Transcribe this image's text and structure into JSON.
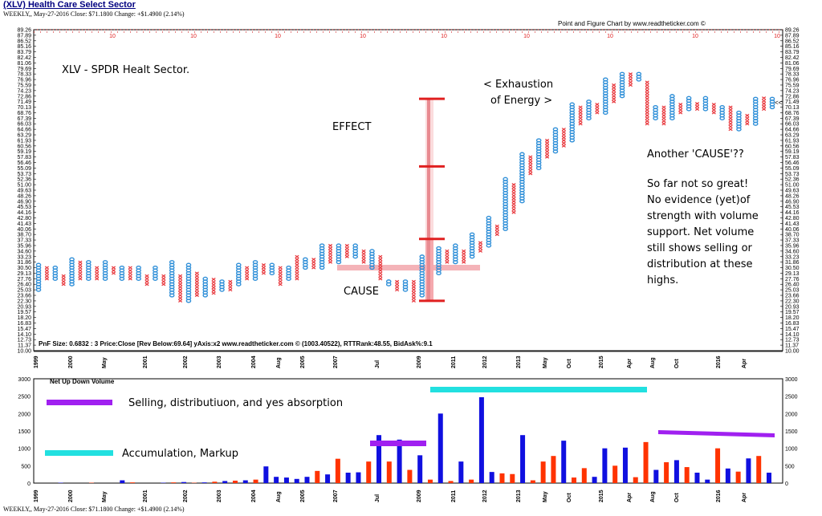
{
  "header": {
    "title": "(XLV) Health Care Select Sector",
    "subtitle": "WEEKLY,, May-27-2016 Close: $71.1800 Change: +$1.4900 (2.14%)",
    "credit": "Point and Figure Chart by www.readtheticker.com ©"
  },
  "footer": {
    "text": "WEEKLY,, May-27-2016 Close: $71.1800 Change: +$1.4900 (2.14%)"
  },
  "colors": {
    "x_column": "#e8383d",
    "o_column": "#2f8fd8",
    "up_volume": "#1010e0",
    "down_volume": "#ff3300",
    "distribution_bar": "#a020f0",
    "accumulation_bar": "#22e0e0",
    "cause_band": "#f4b3b8",
    "effect_bar": "#e02020"
  },
  "chart_data": [
    {
      "type": "point-and-figure",
      "info_line": "PnF Size: 0.6832 : 3    Price:Close [Rev Below:69.64] yAxis:x2    www.readtheticker.com © (1003.40522), RTTRank:48.55, BidAsk%:9.1",
      "y_ticks": [
        "89.26",
        "87.89",
        "86.52",
        "85.16",
        "83.79",
        "82.42",
        "81.06",
        "79.69",
        "78.33",
        "76.96",
        "75.59",
        "74.23",
        "72.86",
        "71.49",
        "70.13",
        "68.76",
        "67.39",
        "66.03",
        "64.66",
        "63.29",
        "61.93",
        "60.56",
        "59.19",
        "57.83",
        "56.46",
        "55.09",
        "53.73",
        "52.36",
        "51.00",
        "49.63",
        "48.26",
        "46.90",
        "45.53",
        "44.16",
        "42.80",
        "41.43",
        "40.06",
        "38.70",
        "37.33",
        "35.96",
        "34.60",
        "33.23",
        "31.86",
        "30.50",
        "29.13",
        "27.76",
        "26.40",
        "25.03",
        "23.66",
        "22.30",
        "20.93",
        "19.57",
        "18.20",
        "16.83",
        "15.47",
        "14.10",
        "12.73",
        "11.37",
        "10.00"
      ],
      "ylim": [
        10.0,
        89.26
      ],
      "last_price_marker": "<<",
      "top_markers": [
        "10",
        "10",
        "10",
        "10",
        "10",
        "10",
        "10",
        "10",
        "10"
      ],
      "x_labels": [
        "1999",
        "2000",
        "May",
        "2001",
        "2002",
        "2003",
        "2004",
        "Aug",
        "2005",
        "2007",
        "Jul",
        "2009",
        "2011",
        "2012",
        "2013",
        "May",
        "Oct",
        "2015",
        "Apr",
        "Aug",
        "Oct",
        "2016",
        "Apr"
      ],
      "columns": [
        {
          "t": "O",
          "lo": 25.03,
          "hi": 31.86
        },
        {
          "t": "X",
          "lo": 27.76,
          "hi": 30.5
        },
        {
          "t": "O",
          "lo": 27.76,
          "hi": 30.5
        },
        {
          "t": "X",
          "lo": 26.4,
          "hi": 29.13
        },
        {
          "t": "O",
          "lo": 26.4,
          "hi": 33.23
        },
        {
          "t": "X",
          "lo": 27.76,
          "hi": 31.86
        },
        {
          "t": "O",
          "lo": 27.76,
          "hi": 31.86
        },
        {
          "t": "X",
          "lo": 27.76,
          "hi": 30.5
        },
        {
          "t": "O",
          "lo": 27.76,
          "hi": 31.86
        },
        {
          "t": "X",
          "lo": 29.13,
          "hi": 30.5
        },
        {
          "t": "O",
          "lo": 27.76,
          "hi": 30.5
        },
        {
          "t": "X",
          "lo": 27.76,
          "hi": 30.5
        },
        {
          "t": "O",
          "lo": 27.76,
          "hi": 30.5
        },
        {
          "t": "X",
          "lo": 26.4,
          "hi": 29.13
        },
        {
          "t": "O",
          "lo": 27.76,
          "hi": 30.5
        },
        {
          "t": "X",
          "lo": 26.4,
          "hi": 29.13
        },
        {
          "t": "O",
          "lo": 23.66,
          "hi": 31.86
        },
        {
          "t": "X",
          "lo": 22.3,
          "hi": 29.13
        },
        {
          "t": "O",
          "lo": 22.3,
          "hi": 31.86
        },
        {
          "t": "X",
          "lo": 23.66,
          "hi": 29.13
        },
        {
          "t": "O",
          "lo": 23.66,
          "hi": 27.76
        },
        {
          "t": "X",
          "lo": 24.2,
          "hi": 27.76
        },
        {
          "t": "O",
          "lo": 25.03,
          "hi": 27.76
        },
        {
          "t": "X",
          "lo": 25.03,
          "hi": 27.76
        },
        {
          "t": "O",
          "lo": 26.4,
          "hi": 31.86
        },
        {
          "t": "X",
          "lo": 27.76,
          "hi": 30.5
        },
        {
          "t": "O",
          "lo": 27.76,
          "hi": 31.86
        },
        {
          "t": "X",
          "lo": 29.13,
          "hi": 31.86
        },
        {
          "t": "O",
          "lo": 29.13,
          "hi": 31.86
        },
        {
          "t": "X",
          "lo": 26.4,
          "hi": 30.5
        },
        {
          "t": "O",
          "lo": 27.76,
          "hi": 30.5
        },
        {
          "t": "X",
          "lo": 27.76,
          "hi": 33.23
        },
        {
          "t": "O",
          "lo": 30.5,
          "hi": 33.23
        },
        {
          "t": "X",
          "lo": 30.5,
          "hi": 33.23
        },
        {
          "t": "O",
          "lo": 30.5,
          "hi": 36.0
        },
        {
          "t": "X",
          "lo": 31.86,
          "hi": 36.0
        },
        {
          "t": "O",
          "lo": 31.86,
          "hi": 36.0
        },
        {
          "t": "X",
          "lo": 33.23,
          "hi": 36.0
        },
        {
          "t": "O",
          "lo": 33.23,
          "hi": 36.0
        },
        {
          "t": "X",
          "lo": 31.86,
          "hi": 34.6
        },
        {
          "t": "O",
          "lo": 30.5,
          "hi": 34.6
        },
        {
          "t": "X",
          "lo": 27.76,
          "hi": 33.23
        },
        {
          "t": "O",
          "lo": 26.4,
          "hi": 27.76
        },
        {
          "t": "X",
          "lo": 25.03,
          "hi": 27.76
        },
        {
          "t": "O",
          "lo": 25.03,
          "hi": 27.76
        },
        {
          "t": "X",
          "lo": 22.3,
          "hi": 27.76
        },
        {
          "t": "O",
          "lo": 23.66,
          "hi": 33.23
        },
        {
          "t": "X",
          "lo": 27.76,
          "hi": 31.86
        },
        {
          "t": "O",
          "lo": 29.13,
          "hi": 35.96
        },
        {
          "t": "X",
          "lo": 31.86,
          "hi": 34.6
        },
        {
          "t": "O",
          "lo": 31.86,
          "hi": 35.96
        },
        {
          "t": "X",
          "lo": 31.86,
          "hi": 34.6
        },
        {
          "t": "O",
          "lo": 33.23,
          "hi": 38.7
        },
        {
          "t": "X",
          "lo": 34.6,
          "hi": 37.33
        },
        {
          "t": "O",
          "lo": 35.96,
          "hi": 42.8
        },
        {
          "t": "X",
          "lo": 38.7,
          "hi": 41.43
        },
        {
          "t": "O",
          "lo": 40.06,
          "hi": 52.36
        },
        {
          "t": "X",
          "lo": 44.16,
          "hi": 51.0
        },
        {
          "t": "O",
          "lo": 46.9,
          "hi": 59.19
        },
        {
          "t": "X",
          "lo": 53.73,
          "hi": 57.83
        },
        {
          "t": "O",
          "lo": 55.09,
          "hi": 61.93
        },
        {
          "t": "X",
          "lo": 57.83,
          "hi": 61.93
        },
        {
          "t": "O",
          "lo": 59.19,
          "hi": 64.66
        },
        {
          "t": "X",
          "lo": 60.56,
          "hi": 64.66
        },
        {
          "t": "O",
          "lo": 61.93,
          "hi": 71.49
        },
        {
          "t": "X",
          "lo": 66.03,
          "hi": 70.13
        },
        {
          "t": "O",
          "lo": 67.39,
          "hi": 71.49
        },
        {
          "t": "X",
          "lo": 68.76,
          "hi": 71.49
        },
        {
          "t": "O",
          "lo": 68.76,
          "hi": 76.96
        },
        {
          "t": "X",
          "lo": 71.49,
          "hi": 75.59
        },
        {
          "t": "O",
          "lo": 72.86,
          "hi": 78.33
        },
        {
          "t": "X",
          "lo": 75.59,
          "hi": 78.33
        },
        {
          "t": "O",
          "lo": 76.96,
          "hi": 78.33
        },
        {
          "t": "X",
          "lo": 66.03,
          "hi": 76.96
        },
        {
          "t": "O",
          "lo": 67.39,
          "hi": 70.13
        },
        {
          "t": "X",
          "lo": 66.03,
          "hi": 70.13
        },
        {
          "t": "O",
          "lo": 67.39,
          "hi": 72.86
        },
        {
          "t": "X",
          "lo": 68.76,
          "hi": 71.49
        },
        {
          "t": "O",
          "lo": 69.64,
          "hi": 72.86
        },
        {
          "t": "X",
          "lo": 69.64,
          "hi": 71.49
        },
        {
          "t": "O",
          "lo": 69.64,
          "hi": 72.86
        },
        {
          "t": "X",
          "lo": 68.76,
          "hi": 71.49
        },
        {
          "t": "O",
          "lo": 67.39,
          "hi": 70.13
        },
        {
          "t": "X",
          "lo": 64.66,
          "hi": 70.13
        },
        {
          "t": "O",
          "lo": 64.66,
          "hi": 68.76
        },
        {
          "t": "X",
          "lo": 66.03,
          "hi": 68.76
        },
        {
          "t": "O",
          "lo": 66.03,
          "hi": 72.86
        },
        {
          "t": "X",
          "lo": 69.64,
          "hi": 72.86
        },
        {
          "t": "O",
          "lo": 70.13,
          "hi": 72.86
        }
      ]
    },
    {
      "type": "bar",
      "title": "Net Up Down Volume",
      "y_ticks": [
        "3000",
        "2500",
        "2000",
        "1500",
        "1000",
        "500",
        "0"
      ],
      "ylim": [
        0,
        3000
      ],
      "x_labels": [
        "1999",
        "2000",
        "May",
        "2001",
        "2002",
        "2003",
        "2004",
        "Aug",
        "2005",
        "2007",
        "Jul",
        "2009",
        "2011",
        "2012",
        "2013",
        "May",
        "Oct",
        "2015",
        "Apr",
        "Aug",
        "Oct",
        "2016",
        "Apr"
      ],
      "bars": [
        {
          "d": "u",
          "v": 0
        },
        {
          "d": "d",
          "v": 0
        },
        {
          "d": "u",
          "v": 10
        },
        {
          "d": "d",
          "v": 0
        },
        {
          "d": "u",
          "v": 0
        },
        {
          "d": "d",
          "v": 10
        },
        {
          "d": "u",
          "v": 0
        },
        {
          "d": "d",
          "v": 0
        },
        {
          "d": "u",
          "v": 80
        },
        {
          "d": "d",
          "v": 20
        },
        {
          "d": "u",
          "v": 0
        },
        {
          "d": "d",
          "v": 0
        },
        {
          "d": "u",
          "v": 10
        },
        {
          "d": "d",
          "v": 20
        },
        {
          "d": "u",
          "v": 30
        },
        {
          "d": "d",
          "v": 10
        },
        {
          "d": "u",
          "v": 20
        },
        {
          "d": "d",
          "v": 40
        },
        {
          "d": "u",
          "v": 60
        },
        {
          "d": "d",
          "v": 70
        },
        {
          "d": "u",
          "v": 80
        },
        {
          "d": "d",
          "v": 100
        },
        {
          "d": "u",
          "v": 480
        },
        {
          "d": "u",
          "v": 180
        },
        {
          "d": "u",
          "v": 160
        },
        {
          "d": "u",
          "v": 120
        },
        {
          "d": "u",
          "v": 180
        },
        {
          "d": "d",
          "v": 350
        },
        {
          "d": "u",
          "v": 250
        },
        {
          "d": "d",
          "v": 700
        },
        {
          "d": "u",
          "v": 300
        },
        {
          "d": "u",
          "v": 310
        },
        {
          "d": "d",
          "v": 620
        },
        {
          "d": "u",
          "v": 1380
        },
        {
          "d": "d",
          "v": 620
        },
        {
          "d": "u",
          "v": 1250
        },
        {
          "d": "d",
          "v": 380
        },
        {
          "d": "u",
          "v": 800
        },
        {
          "d": "d",
          "v": 100
        },
        {
          "d": "u",
          "v": 2000
        },
        {
          "d": "d",
          "v": 60
        },
        {
          "d": "u",
          "v": 620
        },
        {
          "d": "d",
          "v": 100
        },
        {
          "d": "u",
          "v": 2470
        },
        {
          "d": "u",
          "v": 320
        },
        {
          "d": "d",
          "v": 280
        },
        {
          "d": "d",
          "v": 260
        },
        {
          "d": "u",
          "v": 1380
        },
        {
          "d": "d",
          "v": 80
        },
        {
          "d": "d",
          "v": 620
        },
        {
          "d": "d",
          "v": 780
        },
        {
          "d": "u",
          "v": 1220
        },
        {
          "d": "d",
          "v": 160
        },
        {
          "d": "d",
          "v": 430
        },
        {
          "d": "u",
          "v": 180
        },
        {
          "d": "u",
          "v": 1000
        },
        {
          "d": "d",
          "v": 500
        },
        {
          "d": "u",
          "v": 1020
        },
        {
          "d": "d",
          "v": 170
        },
        {
          "d": "d",
          "v": 1180
        },
        {
          "d": "u",
          "v": 380
        },
        {
          "d": "d",
          "v": 600
        },
        {
          "d": "u",
          "v": 660
        },
        {
          "d": "d",
          "v": 460
        },
        {
          "d": "u",
          "v": 300
        },
        {
          "d": "u",
          "v": 100
        },
        {
          "d": "d",
          "v": 1000
        },
        {
          "d": "u",
          "v": 420
        },
        {
          "d": "d",
          "v": 330
        },
        {
          "d": "u",
          "v": 710
        },
        {
          "d": "d",
          "v": 780
        },
        {
          "d": "u",
          "v": 300
        }
      ]
    }
  ],
  "annotations": {
    "title": "XLV - SPDR Healt Sector.",
    "effect": "EFFECT",
    "cause": "CAUSE",
    "exhaustion_1": "< Exhaustion",
    "exhaustion_2": "of Energy >",
    "another_cause": "Another 'CAUSE'??",
    "comment_1": "So far not so great!",
    "comment_2": "No evidence (yet)of",
    "comment_3": "strength with volume",
    "comment_4": "support. Net volume",
    "comment_5": "still shows selling or",
    "comment_6": "distribution at these",
    "comment_7": "highs.",
    "selling_legend": "Selling, distributiuon, and yes absorption",
    "accumulation_legend": "Accumulation, Markup"
  }
}
